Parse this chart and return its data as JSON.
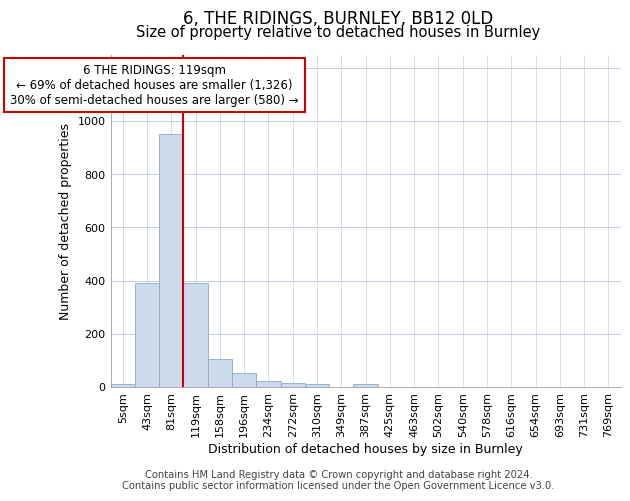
{
  "title": "6, THE RIDINGS, BURNLEY, BB12 0LD",
  "subtitle": "Size of property relative to detached houses in Burnley",
  "xlabel": "Distribution of detached houses by size in Burnley",
  "ylabel": "Number of detached properties",
  "categories": [
    "5sqm",
    "43sqm",
    "81sqm",
    "119sqm",
    "158sqm",
    "196sqm",
    "234sqm",
    "272sqm",
    "310sqm",
    "349sqm",
    "387sqm",
    "425sqm",
    "463sqm",
    "502sqm",
    "540sqm",
    "578sqm",
    "616sqm",
    "654sqm",
    "693sqm",
    "731sqm",
    "769sqm"
  ],
  "values": [
    10,
    390,
    950,
    390,
    105,
    52,
    23,
    15,
    10,
    0,
    10,
    0,
    0,
    0,
    0,
    0,
    0,
    0,
    0,
    0,
    0
  ],
  "bar_color": "#ccdaeb",
  "bar_edge_color": "#8aaac8",
  "vline_x_index": 3,
  "vline_color": "#cc0000",
  "annotation_text": "6 THE RIDINGS: 119sqm\n← 69% of detached houses are smaller (1,326)\n30% of semi-detached houses are larger (580) →",
  "annotation_box_color": "#ffffff",
  "annotation_box_edge_color": "#cc0000",
  "ylim": [
    0,
    1250
  ],
  "yticks": [
    0,
    200,
    400,
    600,
    800,
    1000,
    1200
  ],
  "footer_line1": "Contains HM Land Registry data © Crown copyright and database right 2024.",
  "footer_line2": "Contains public sector information licensed under the Open Government Licence v3.0.",
  "background_color": "#ffffff",
  "grid_color": "#c8cce0",
  "title_fontsize": 12,
  "subtitle_fontsize": 10.5,
  "label_fontsize": 9,
  "tick_fontsize": 8,
  "annotation_fontsize": 8.5,
  "footer_fontsize": 7.2
}
